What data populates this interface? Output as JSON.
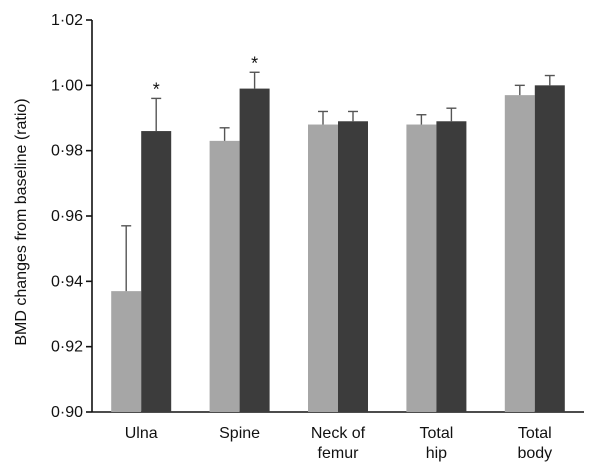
{
  "chart_data": {
    "type": "bar",
    "title": "",
    "xlabel": "",
    "ylabel": "BMD changes from baseline (ratio)",
    "ylim": [
      0.9,
      1.02
    ],
    "yticks": [
      "0·90",
      "0·92",
      "0·94",
      "0·96",
      "0·98",
      "1·00",
      "1·02"
    ],
    "ytick_values": [
      0.9,
      0.92,
      0.94,
      0.96,
      0.98,
      1.0,
      1.02
    ],
    "categories": [
      [
        "Ulna"
      ],
      [
        "Spine"
      ],
      [
        "Neck of",
        "femur"
      ],
      [
        "Total",
        "hip"
      ],
      [
        "Total",
        "body"
      ]
    ],
    "series": [
      {
        "color": "#a6a6a6",
        "values": [
          0.937,
          0.983,
          0.988,
          0.988,
          0.997
        ],
        "errors": [
          0.02,
          0.004,
          0.004,
          0.003,
          0.003
        ],
        "annotations": [
          "",
          "",
          "",
          "",
          ""
        ]
      },
      {
        "color": "#3c3c3c",
        "values": [
          0.986,
          0.999,
          0.989,
          0.989,
          1.0
        ],
        "errors": [
          0.01,
          0.005,
          0.003,
          0.004,
          0.003
        ],
        "annotations": [
          "*",
          "*",
          "",
          "",
          ""
        ]
      }
    ],
    "grid": false,
    "legend": "none"
  }
}
